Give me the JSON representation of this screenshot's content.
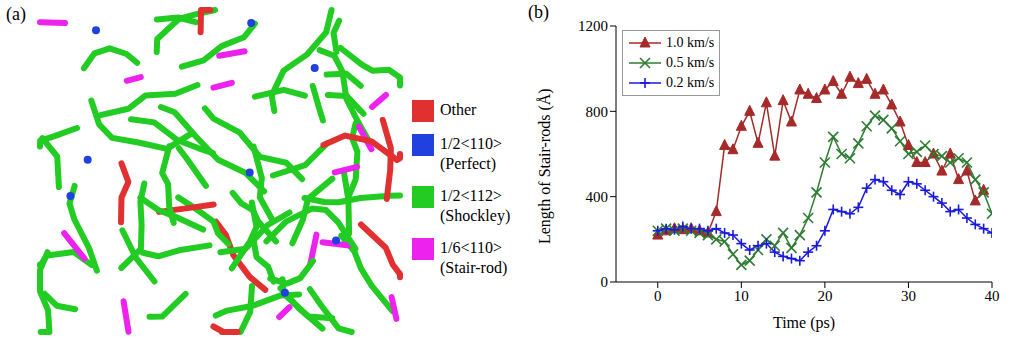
{
  "panel_a": {
    "label": "(a)",
    "legend": [
      {
        "lines": [
          "Other"
        ],
        "color": "#e03030"
      },
      {
        "lines": [
          "1/2<110>",
          "(Perfect)"
        ],
        "color": "#2040e0"
      },
      {
        "lines": [
          "1/2<112>",
          "(Shockley)"
        ],
        "color": "#22cc22"
      },
      {
        "lines": [
          "1/6<110>",
          "(Stair-rod)"
        ],
        "color": "#ee22ee"
      }
    ]
  },
  "chart_data": {
    "label": "(b)",
    "type": "line",
    "x_label": "Time (ps)",
    "y_label": "Length of Stair-rods (Å)",
    "xlim": [
      -5,
      40
    ],
    "xticks": [
      0,
      10,
      20,
      30,
      40
    ],
    "ylim": [
      0,
      1200
    ],
    "yticks": [
      0,
      400,
      800,
      1200
    ],
    "legend": "upper left",
    "grid": false,
    "x": [
      0,
      1,
      2,
      3,
      4,
      5,
      6,
      7,
      8,
      9,
      10,
      11,
      12,
      13,
      14,
      15,
      16,
      17,
      18,
      19,
      20,
      21,
      22,
      23,
      24,
      25,
      26,
      27,
      28,
      29,
      30,
      31,
      32,
      33,
      34,
      35,
      36,
      37,
      38,
      39,
      40
    ],
    "series": [
      {
        "name": "1.0 km/s",
        "color": "#a52a2a",
        "marker": "triangle",
        "values": [
          220,
          240,
          250,
          245,
          250,
          240,
          230,
          330,
          640,
          620,
          730,
          800,
          650,
          840,
          590,
          850,
          750,
          900,
          880,
          860,
          900,
          940,
          880,
          960,
          930,
          950,
          880,
          900,
          830,
          750,
          640,
          560,
          560,
          600,
          520,
          600,
          480,
          520,
          380,
          430,
          null
        ]
      },
      {
        "name": "0.5 km/s",
        "color": "#2e7d32",
        "marker": "x",
        "values": [
          240,
          250,
          240,
          250,
          240,
          230,
          220,
          200,
          190,
          130,
          80,
          100,
          150,
          200,
          170,
          230,
          160,
          220,
          300,
          420,
          560,
          680,
          600,
          580,
          650,
          730,
          780,
          760,
          720,
          660,
          600,
          610,
          640,
          600,
          590,
          560,
          580,
          560,
          480,
          420,
          320
        ]
      },
      {
        "name": "0.2 km/s",
        "color": "#1a1adb",
        "marker": "plus",
        "values": [
          240,
          250,
          245,
          260,
          250,
          250,
          240,
          250,
          230,
          220,
          180,
          150,
          170,
          180,
          140,
          120,
          110,
          100,
          140,
          170,
          240,
          340,
          330,
          320,
          350,
          440,
          480,
          470,
          430,
          410,
          470,
          460,
          430,
          400,
          370,
          330,
          340,
          300,
          270,
          250,
          230
        ]
      }
    ]
  }
}
